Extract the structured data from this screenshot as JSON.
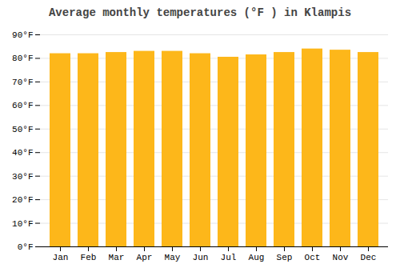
{
  "chart_data": {
    "type": "bar",
    "title": "Average monthly temperatures (°F ) in Klampis",
    "categories": [
      "Jan",
      "Feb",
      "Mar",
      "Apr",
      "May",
      "Jun",
      "Jul",
      "Aug",
      "Sep",
      "Oct",
      "Nov",
      "Dec"
    ],
    "values": [
      82,
      82,
      82.5,
      83,
      83,
      82,
      80.5,
      81.5,
      82.5,
      84,
      83.5,
      82.5
    ],
    "color": "#FDB71A",
    "ylim": [
      0,
      90
    ],
    "yticks": [
      {
        "value": 0,
        "label": "0°F"
      },
      {
        "value": 10,
        "label": "10°F"
      },
      {
        "value": 20,
        "label": "20°F"
      },
      {
        "value": 30,
        "label": "30°F"
      },
      {
        "value": 40,
        "label": "40°F"
      },
      {
        "value": 50,
        "label": "50°F"
      },
      {
        "value": 60,
        "label": "60°F"
      },
      {
        "value": 70,
        "label": "70°F"
      },
      {
        "value": 80,
        "label": "80°F"
      },
      {
        "value": 90,
        "label": "90°F"
      }
    ],
    "grid": true
  }
}
